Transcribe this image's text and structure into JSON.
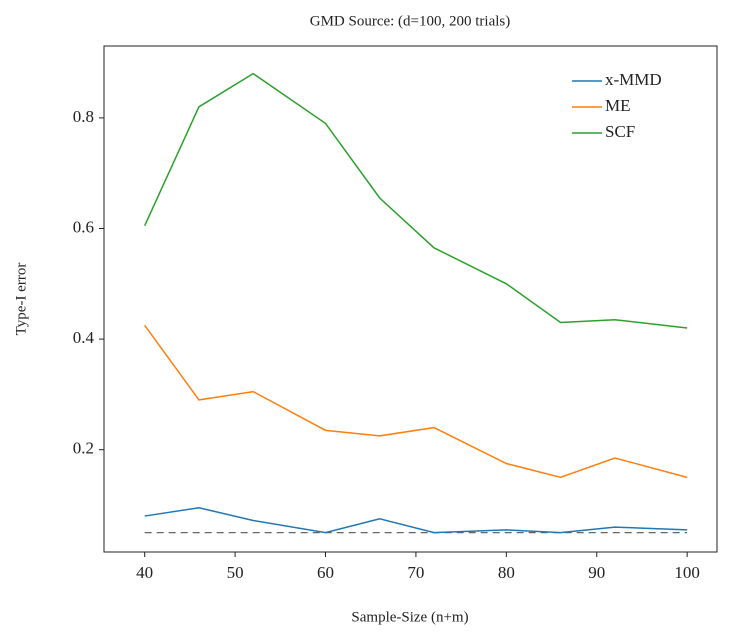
{
  "chart_data": {
    "type": "line",
    "title": "GMD Source: (d=100, 200 trials)",
    "xlabel": "Sample-Size (n+m)",
    "ylabel": "Type-I error",
    "x": [
      40,
      46,
      52,
      60,
      66,
      72,
      80,
      86,
      92,
      100
    ],
    "series": [
      {
        "name": "x-MMD",
        "color": "#1f77b4",
        "values": [
          0.08,
          0.095,
          0.072,
          0.05,
          0.075,
          0.05,
          0.055,
          0.05,
          0.06,
          0.055
        ]
      },
      {
        "name": "ME",
        "color": "#ff7f0e",
        "values": [
          0.425,
          0.29,
          0.305,
          0.235,
          0.225,
          0.24,
          0.175,
          0.15,
          0.185,
          0.15
        ]
      },
      {
        "name": "SCF",
        "color": "#2ca02c",
        "values": [
          0.605,
          0.82,
          0.88,
          0.79,
          0.655,
          0.565,
          0.5,
          0.43,
          0.435,
          0.42
        ]
      }
    ],
    "reference_line": {
      "value": 0.05,
      "color": "#666666"
    },
    "xlim": [
      35.5,
      103.3
    ],
    "xticks": [
      40,
      50,
      60,
      70,
      80,
      90,
      100
    ],
    "ylim": [
      0.015,
      0.93
    ],
    "yticks": [
      0.2,
      0.4,
      0.6,
      0.8
    ],
    "legend": "upper right",
    "grid": false
  }
}
